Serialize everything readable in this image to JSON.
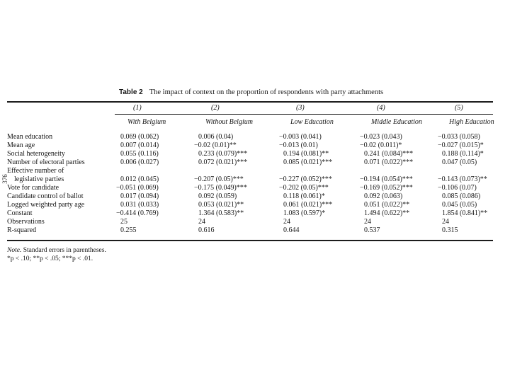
{
  "page": {
    "margin_page_number": "376"
  },
  "table": {
    "label": "Table 2",
    "caption": "The impact of context on the proportion of respondents with party attachments",
    "column_numbers": [
      "(1)",
      "(2)",
      "(3)",
      "(4)",
      "(5)"
    ],
    "column_headers": [
      "With Belgium",
      "Without Belgium",
      "Low Education",
      "Middle Education",
      "High Education"
    ],
    "rows": [
      {
        "label": "Mean education",
        "values": [
          "0.069 (0.062)",
          "0.006 (0.04)",
          "−0.003 (0.041)",
          "−0.023 (0.043)",
          "−0.033 (0.058)"
        ]
      },
      {
        "label": "Mean age",
        "values": [
          "0.007 (0.014)",
          "−0.02 (0.01)**",
          "−0.013 (0.01)",
          "−0.02 (0.011)*",
          "−0.027 (0.015)*"
        ]
      },
      {
        "label": "Social heterogeneity",
        "values": [
          "0.055 (0.116)",
          "0.233 (0.079)***",
          "0.194 (0.081)**",
          "0.241 (0.084)***",
          "0.188 (0.114)*"
        ]
      },
      {
        "label": "Number of electoral parties",
        "values": [
          "0.006 (0.027)",
          "0.072 (0.021)***",
          "0.085 (0.021)***",
          "0.071 (0.022)***",
          "0.047 (0.05)"
        ]
      },
      {
        "label": "Effective number of",
        "values": [
          "",
          "",
          "",
          "",
          ""
        ]
      },
      {
        "label": "    legislative parties",
        "values": [
          "0.012 (0.045)",
          "−0.207 (0.05)***",
          "−0.227 (0.052)***",
          "−0.194 (0.054)***",
          "−0.143 (0.073)**"
        ]
      },
      {
        "label": "Vote for candidate",
        "values": [
          "−0.051 (0.069)",
          "−0.175 (0.049)***",
          "−0.202 (0.05)***",
          "−0.169 (0.052)***",
          "−0.106 (0.07)"
        ]
      },
      {
        "label": "Candidate control of ballot",
        "values": [
          "0.017 (0.094)",
          "0.092 (0.059)",
          "0.118 (0.061)*",
          "0.092 (0.063)",
          "0.085 (0.086)"
        ]
      },
      {
        "label": "Logged weighted party age",
        "values": [
          "0.031 (0.033)",
          "0.053 (0.021)**",
          "0.061 (0.021)***",
          "0.051 (0.022)**",
          "0.045 (0.05)"
        ]
      },
      {
        "label": "Constant",
        "values": [
          "−0.414 (0.769)",
          "1.364 (0.583)**",
          "1.083 (0.597)*",
          "1.494 (0.622)**",
          "1.854 (0.841)**"
        ]
      },
      {
        "label": "Observations",
        "values": [
          "25",
          "24",
          "24",
          "24",
          "24"
        ]
      },
      {
        "label": "R-squared",
        "values": [
          "0.255",
          "0.616",
          "0.644",
          "0.537",
          "0.315"
        ]
      }
    ],
    "notes": {
      "note_label": "Note.",
      "note_text": "Standard errors in parentheses.",
      "significance": "*p < .10; **p < .05; ***p < .01."
    }
  }
}
